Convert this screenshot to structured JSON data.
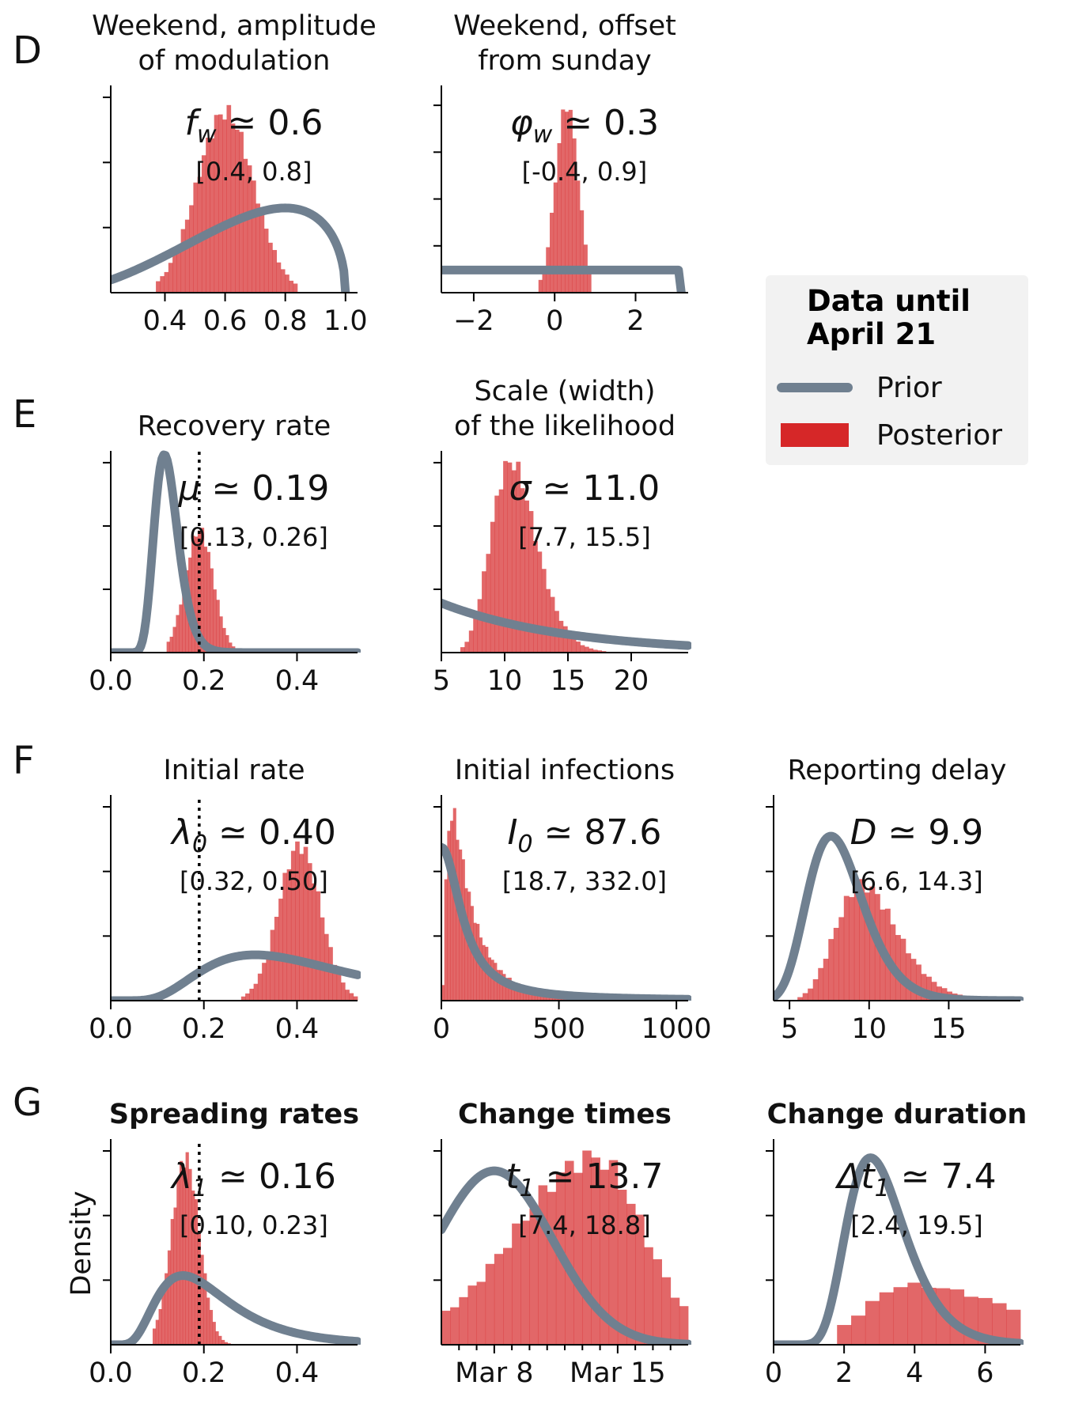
{
  "legend": {
    "title": "Data until April 21",
    "prior_label": "Prior",
    "posterior_label": "Posterior",
    "prior_color": "#708090",
    "posterior_color": "#d62728"
  },
  "y_axis_label": "Density",
  "chart_data": [
    {
      "id": "fw",
      "row_letter": "D",
      "type": "histogram+line",
      "title": "Weekend, amplitude of modulation",
      "title_lines": [
        "Weekend, amplitude",
        "of modulation"
      ],
      "title_bold": false,
      "estimate_symbol": "f",
      "estimate_sub": "w",
      "estimate_value": "0.6",
      "interval": "[0.4, 0.8]",
      "xlim": [
        0.22,
        1.04
      ],
      "xticks": [
        0.4,
        0.6,
        0.8,
        1.0
      ],
      "xtick_labels": [
        "0.4",
        "0.6",
        "0.8",
        "1.0"
      ],
      "yticks_count": 3,
      "ymax": 1.15,
      "ref_line": null,
      "posterior": {
        "kind": "gauss",
        "mu": 0.6,
        "sd": 0.095,
        "lo": 0.37,
        "hi": 0.84,
        "bins": 34,
        "peak": 1.0,
        "wiggle": 0.05
      },
      "prior": {
        "kind": "beta",
        "a": 3.0,
        "b": 1.5,
        "lo": 0.0,
        "hi": 1.0,
        "peak": 0.47
      }
    },
    {
      "id": "phiw",
      "row_letter": "",
      "type": "histogram+line",
      "title": "Weekend, offset from sunday",
      "title_lines": [
        "Weekend, offset",
        "from sunday"
      ],
      "title_bold": false,
      "estimate_symbol": "φ",
      "estimate_sub": "w",
      "estimate_value": "0.3",
      "interval": "[-0.4, 0.9]",
      "xlim": [
        -2.8,
        3.3
      ],
      "xticks": [
        -2,
        0,
        2
      ],
      "xtick_labels": [
        "−2",
        "0",
        "2"
      ],
      "yticks_count": 4,
      "ymax": 1.1,
      "ref_line": null,
      "posterior": {
        "kind": "gauss",
        "mu": 0.3,
        "sd": 0.28,
        "lo": -0.4,
        "hi": 0.9,
        "bins": 14,
        "peak": 1.0,
        "wiggle": 0.04
      },
      "prior": {
        "kind": "uniform",
        "lo": -3.14,
        "hi": 3.14,
        "peak": 0.12
      }
    },
    {
      "id": "mu",
      "row_letter": "E",
      "type": "histogram+line",
      "title": "Recovery rate",
      "title_lines": [
        "Recovery rate"
      ],
      "title_bold": false,
      "estimate_symbol": "μ",
      "estimate_sub": "",
      "estimate_value": "0.19",
      "interval": "[0.13, 0.26]",
      "xlim": [
        0.0,
        0.53
      ],
      "xticks": [
        0.0,
        0.2,
        0.4
      ],
      "xtick_labels": [
        "0.0",
        "0.2",
        "0.4"
      ],
      "yticks_count": 3,
      "ymax": 1.1,
      "ref_line": 0.19,
      "posterior": {
        "kind": "gauss",
        "mu": 0.19,
        "sd": 0.03,
        "lo": 0.12,
        "hi": 0.28,
        "bins": 24,
        "peak": 0.67,
        "wiggle": 0.05
      },
      "prior": {
        "kind": "lognorm",
        "mode": 0.115,
        "sigma": 0.22,
        "lo": 0.0,
        "hi": 0.53,
        "peak": 1.08
      }
    },
    {
      "id": "sigma",
      "row_letter": "",
      "type": "histogram+line",
      "title": "Scale (width) of the likelihood",
      "title_lines": [
        "Scale (width)",
        "of the likelihood"
      ],
      "title_bold": false,
      "estimate_symbol": "σ",
      "estimate_sub": "",
      "estimate_value": "11.0",
      "interval": "[7.7, 15.5]",
      "xlim": [
        5.0,
        24.5
      ],
      "xticks": [
        5,
        10,
        15,
        20
      ],
      "xtick_labels": [
        "5",
        "10",
        "15",
        "20"
      ],
      "yticks_count": 3,
      "ymax": 1.1,
      "ref_line": null,
      "posterior": {
        "kind": "lognorm",
        "mode": 10.5,
        "sigma": 0.17,
        "lo": 6.5,
        "hi": 18.0,
        "bins": 34,
        "peak": 1.04,
        "wiggle": 0.05
      },
      "prior": {
        "kind": "exp",
        "rate": 0.1,
        "lo": 5.0,
        "hi": 24.5,
        "peak": 0.27
      }
    },
    {
      "id": "lambda0",
      "row_letter": "F",
      "type": "histogram+line",
      "title": "Initial rate",
      "title_lines": [
        "Initial rate"
      ],
      "title_bold": false,
      "estimate_symbol": "λ",
      "estimate_sub": "0",
      "estimate_value": "0.40",
      "interval": "[0.32, 0.50]",
      "xlim": [
        0.0,
        0.53
      ],
      "xticks": [
        0.0,
        0.2,
        0.4
      ],
      "xtick_labels": [
        "0.0",
        "0.2",
        "0.4"
      ],
      "yticks_count": 3,
      "ymax": 1.1,
      "ref_line": 0.19,
      "posterior": {
        "kind": "gauss",
        "mu": 0.405,
        "sd": 0.045,
        "lo": 0.28,
        "hi": 0.53,
        "bins": 28,
        "peak": 0.83,
        "wiggle": 0.05
      },
      "prior": {
        "kind": "lognorm",
        "mode": 0.31,
        "sigma": 0.5,
        "lo": 0.0,
        "hi": 0.53,
        "peak": 0.245
      }
    },
    {
      "id": "I0",
      "row_letter": "",
      "type": "histogram+line",
      "title": "Initial infections",
      "title_lines": [
        "Initial infections"
      ],
      "title_bold": false,
      "estimate_symbol": "I",
      "estimate_sub": "0",
      "estimate_value": "87.6",
      "interval": "[18.7, 332.0]",
      "xlim": [
        0,
        1050
      ],
      "xticks": [
        0,
        500,
        1000
      ],
      "xtick_labels": [
        "0",
        "500",
        "1000"
      ],
      "yticks_count": 3,
      "ymax": 1.1,
      "ref_line": null,
      "posterior": {
        "kind": "lognorm",
        "mode": 45,
        "sigma": 0.9,
        "lo": 0,
        "hi": 620,
        "bins": 50,
        "peak": 1.0,
        "wiggle": 0.06
      },
      "prior": {
        "kind": "halfcauchy",
        "scale": 100,
        "lo": 0,
        "hi": 1050,
        "peak": 0.82
      }
    },
    {
      "id": "D",
      "row_letter": "",
      "type": "histogram+line",
      "title": "Reporting delay",
      "title_lines": [
        "Reporting delay"
      ],
      "title_bold": false,
      "estimate_symbol": "D",
      "estimate_sub": "",
      "estimate_value": "9.9",
      "interval": "[6.6, 14.3]",
      "xlim": [
        4.0,
        19.5
      ],
      "xticks": [
        5,
        10,
        15
      ],
      "xtick_labels": [
        "5",
        "10",
        "15"
      ],
      "yticks_count": 3,
      "ymax": 1.1,
      "ref_line": null,
      "posterior": {
        "kind": "lognorm",
        "mode": 9.6,
        "sigma": 0.2,
        "lo": 5.5,
        "hi": 16.5,
        "bins": 34,
        "peak": 0.62,
        "wiggle": 0.06
      },
      "prior": {
        "kind": "lognorm",
        "mode": 7.6,
        "sigma": 0.23,
        "lo": 4.0,
        "hi": 19.5,
        "peak": 0.88
      }
    },
    {
      "id": "lambda1",
      "row_letter": "G",
      "type": "histogram+line",
      "title": "Spreading rates",
      "title_lines": [
        "Spreading rates"
      ],
      "title_bold": true,
      "estimate_symbol": "λ",
      "estimate_sub": "1",
      "estimate_value": "0.16",
      "interval": "[0.10, 0.23]",
      "xlim": [
        0.0,
        0.53
      ],
      "xticks": [
        0.0,
        0.2,
        0.4
      ],
      "xtick_labels": [
        "0.0",
        "0.2",
        "0.4"
      ],
      "yticks_count": 3,
      "ymax": 1.1,
      "ref_line": 0.19,
      "posterior": {
        "kind": "gauss",
        "mu": 0.16,
        "sd": 0.03,
        "lo": 0.09,
        "hi": 0.27,
        "bins": 28,
        "peak": 1.0,
        "wiggle": 0.05
      },
      "prior": {
        "kind": "lognorm",
        "mode": 0.155,
        "sigma": 0.5,
        "lo": 0.0,
        "hi": 0.53,
        "peak": 0.37
      }
    },
    {
      "id": "t1",
      "row_letter": "",
      "type": "histogram+line",
      "title": "Change times",
      "title_lines": [
        "Change times"
      ],
      "title_bold": true,
      "estimate_symbol": "t",
      "estimate_sub": "1",
      "estimate_value": "13.7",
      "interval": "[7.4, 18.8]",
      "xlim": [
        5.0,
        19.0
      ],
      "xticks": [
        6,
        7,
        8,
        9,
        10,
        11,
        12,
        13,
        14,
        15,
        16,
        17,
        18
      ],
      "xtick_labels": [
        "Mar 8",
        "Mar 15"
      ],
      "xtick_label_values": [
        8,
        15
      ],
      "yticks_count": 3,
      "ymax": 1.1,
      "ref_line": null,
      "posterior": {
        "kind": "skew",
        "mode": 13.7,
        "lo": 5.0,
        "hi": 19.0,
        "sdl": 4.5,
        "sdr": 2.8,
        "bins": 28,
        "peak": 1.0,
        "wiggle": 0.06
      },
      "prior": {
        "kind": "gauss",
        "mu": 8.0,
        "sd": 3.3,
        "lo": 5.0,
        "hi": 19.0,
        "peak": 0.93
      }
    },
    {
      "id": "dt1",
      "row_letter": "",
      "type": "histogram+line",
      "title": "Change duration",
      "title_lines": [
        "Change duration"
      ],
      "title_bold": true,
      "estimate_symbol": "Δt",
      "estimate_sub": "1",
      "estimate_value": "7.4",
      "interval": "[2.4, 19.5]",
      "xlim": [
        0.0,
        7.0
      ],
      "xticks": [
        0,
        2,
        4,
        6
      ],
      "xtick_labels": [
        "0",
        "2",
        "4",
        "6"
      ],
      "yticks_count": 3,
      "ymax": 1.1,
      "ref_line": null,
      "posterior": {
        "kind": "skew",
        "mode": 3.8,
        "lo": 1.8,
        "hi": 7.0,
        "sdl": 1.2,
        "sdr": 3.0,
        "bins": 13,
        "peak": 0.32,
        "wiggle": 0.04
      },
      "prior": {
        "kind": "lognorm",
        "mode": 2.75,
        "sigma": 0.3,
        "lo": 0.0,
        "hi": 7.0,
        "peak": 1.0
      }
    }
  ]
}
